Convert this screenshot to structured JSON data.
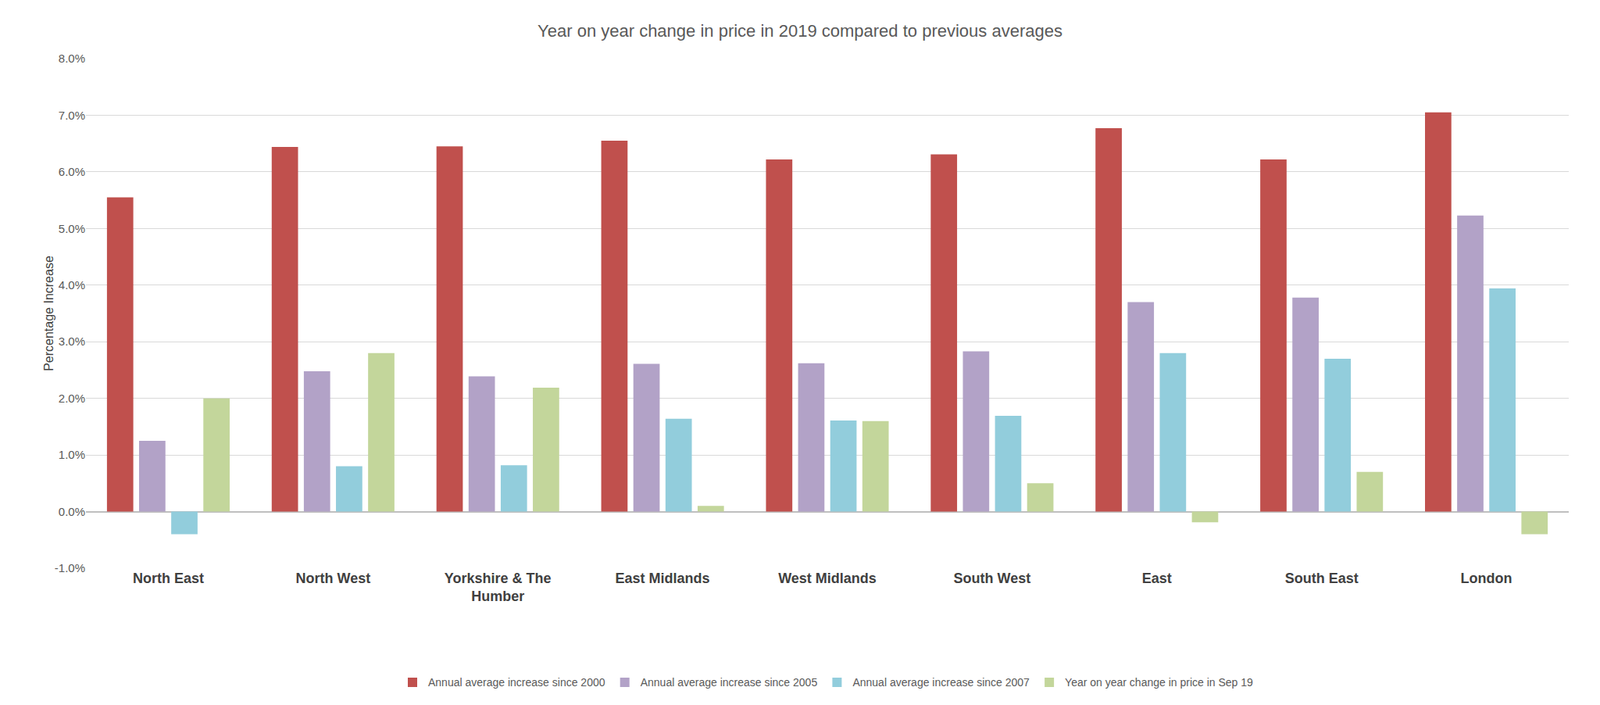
{
  "chart_data": {
    "type": "bar",
    "title": "Year on year change in price in 2019 compared to previous averages",
    "y_label": "Percentage Increase",
    "categories": [
      "North East",
      "North West",
      "Yorkshire & The Humber",
      "East Midlands",
      "West Midlands",
      "South West",
      "East",
      "South East",
      "London"
    ],
    "series": [
      {
        "name": "Annual average increase since 2000",
        "color": "#c0504d",
        "values": [
          5.55,
          6.44,
          6.45,
          6.55,
          6.22,
          6.31,
          6.77,
          6.22,
          7.05
        ]
      },
      {
        "name": "Annual average increase since 2005",
        "color": "#b2a2c7",
        "values": [
          1.25,
          2.48,
          2.39,
          2.61,
          2.62,
          2.83,
          3.7,
          3.78,
          5.23
        ]
      },
      {
        "name": "Annual average increase since 2007",
        "color": "#92cddc",
        "values": [
          -0.4,
          0.8,
          0.82,
          1.64,
          1.61,
          1.69,
          2.8,
          2.7,
          3.94
        ]
      },
      {
        "name": "Year on year change in price in Sep 19",
        "color": "#c3d69b",
        "values": [
          2.0,
          2.8,
          2.19,
          0.1,
          1.6,
          0.5,
          -0.19,
          0.7,
          -0.4
        ]
      }
    ],
    "ylim": [
      -1,
      8
    ],
    "yticks": [
      {
        "value": -1,
        "label": "-1.0%"
      },
      {
        "value": 0,
        "label": "0.0%"
      },
      {
        "value": 1,
        "label": "1.0%"
      },
      {
        "value": 2,
        "label": "2.0%"
      },
      {
        "value": 3,
        "label": "3.0%"
      },
      {
        "value": 4,
        "label": "4.0%"
      },
      {
        "value": 5,
        "label": "5.0%"
      },
      {
        "value": 6,
        "label": "6.0%"
      },
      {
        "value": 7,
        "label": "7.0%"
      },
      {
        "value": 8,
        "label": "8.0%"
      }
    ],
    "grid": true,
    "legend": "bottom"
  }
}
